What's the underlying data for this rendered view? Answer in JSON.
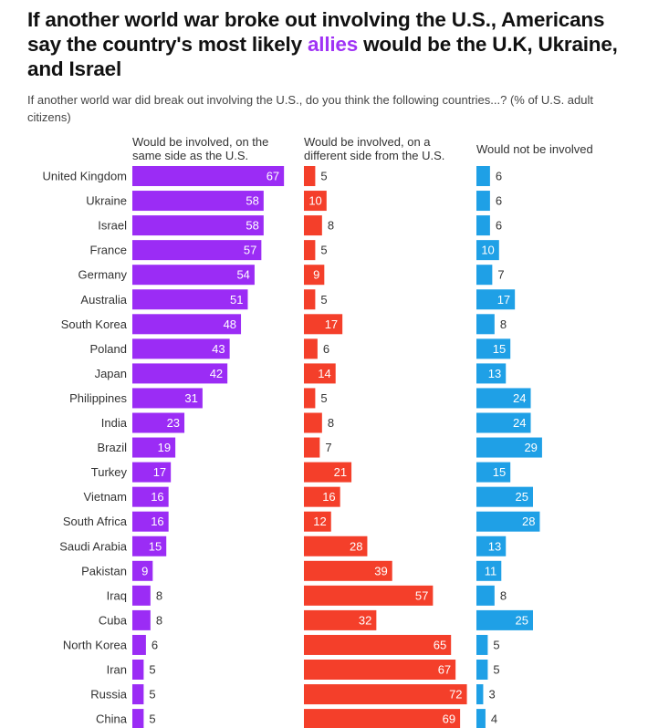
{
  "title_parts": [
    "If another world war broke out involving the U.S., Americans say the country's most likely ",
    "allies",
    " would be the U.K, Ukraine, and Israel"
  ],
  "subtitle": "If another world war did break out involving the U.S., do you think the following countries...? (% of U.S. adult citizens)",
  "chart_data": {
    "type": "bar",
    "orientation": "horizontal",
    "categories": [
      "United Kingdom",
      "Ukraine",
      "Israel",
      "France",
      "Germany",
      "Australia",
      "South Korea",
      "Poland",
      "Japan",
      "Philippines",
      "India",
      "Brazil",
      "Turkey",
      "Vietnam",
      "South Africa",
      "Saudi Arabia",
      "Pakistan",
      "Iraq",
      "Cuba",
      "North Korea",
      "Iran",
      "Russia",
      "China"
    ],
    "series": [
      {
        "name": "Would be involved, on the same side as the U.S.",
        "color": "#9b2cf5",
        "values": [
          67,
          58,
          58,
          57,
          54,
          51,
          48,
          43,
          42,
          31,
          23,
          19,
          17,
          16,
          16,
          15,
          9,
          8,
          8,
          6,
          5,
          5,
          5
        ]
      },
      {
        "name": "Would be involved, on a different side from the U.S.",
        "color": "#f43f2a",
        "values": [
          5,
          10,
          8,
          5,
          9,
          5,
          17,
          6,
          14,
          5,
          8,
          7,
          21,
          16,
          12,
          28,
          39,
          57,
          32,
          65,
          67,
          72,
          69
        ]
      },
      {
        "name": "Would not be involved",
        "color": "#1fa0e6",
        "values": [
          6,
          6,
          6,
          10,
          7,
          17,
          8,
          15,
          13,
          24,
          24,
          29,
          15,
          25,
          28,
          13,
          11,
          8,
          25,
          5,
          5,
          3,
          4
        ]
      }
    ],
    "unit": "%"
  }
}
